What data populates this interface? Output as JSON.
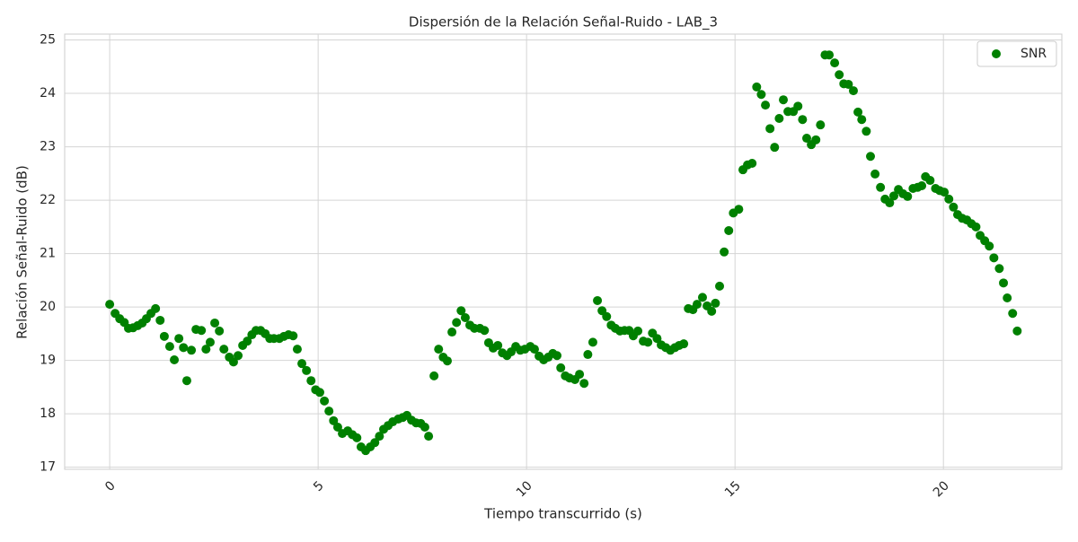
{
  "chart_data": {
    "type": "scatter",
    "title": "Dispersión de la Relación Señal-Ruido - LAB_3",
    "x_label": "Tiempo transcurrido (s)",
    "y_label": "Relación Señal-Ruido (dB)",
    "x": [
      0,
      0.13,
      0.24,
      0.35,
      0.45,
      0.56,
      0.67,
      0.78,
      0.88,
      0.99,
      1.1,
      1.21,
      1.31,
      1.44,
      1.55,
      1.66,
      1.77,
      1.85,
      1.96,
      2.07,
      2.2,
      2.31,
      2.41,
      2.52,
      2.63,
      2.74,
      2.87,
      2.97,
      3.08,
      3.19,
      3.3,
      3.41,
      3.51,
      3.62,
      3.73,
      3.84,
      3.94,
      4.07,
      4.18,
      4.29,
      4.4,
      4.5,
      4.61,
      4.72,
      4.83,
      4.94,
      5.04,
      5.15,
      5.26,
      5.37,
      5.47,
      5.58,
      5.71,
      5.82,
      5.93,
      6.03,
      6.14,
      6.25,
      6.36,
      6.47,
      6.57,
      6.68,
      6.79,
      6.92,
      7.03,
      7.13,
      7.24,
      7.35,
      7.46,
      7.56,
      7.65,
      7.78,
      7.89,
      8.0,
      8.1,
      8.21,
      8.32,
      8.43,
      8.53,
      8.64,
      8.75,
      8.88,
      8.99,
      9.09,
      9.2,
      9.31,
      9.42,
      9.53,
      9.63,
      9.74,
      9.85,
      9.96,
      10.09,
      10.19,
      10.3,
      10.41,
      10.52,
      10.63,
      10.73,
      10.82,
      10.93,
      11.03,
      11.16,
      11.27,
      11.38,
      11.47,
      11.59,
      11.7,
      11.81,
      11.92,
      12.03,
      12.13,
      12.24,
      12.35,
      12.46,
      12.56,
      12.67,
      12.8,
      12.91,
      13.02,
      13.13,
      13.23,
      13.34,
      13.45,
      13.56,
      13.66,
      13.77,
      13.88,
      13.99,
      14.09,
      14.22,
      14.33,
      14.44,
      14.53,
      14.63,
      14.74,
      14.85,
      14.96,
      15.09,
      15.19,
      15.3,
      15.41,
      15.52,
      15.63,
      15.73,
      15.84,
      15.95,
      16.06,
      16.16,
      16.27,
      16.4,
      16.51,
      16.62,
      16.72,
      16.83,
      16.94,
      17.05,
      17.16,
      17.26,
      17.39,
      17.5,
      17.61,
      17.72,
      17.84,
      17.95,
      18.04,
      18.15,
      18.25,
      18.36,
      18.49,
      18.6,
      18.71,
      18.81,
      18.92,
      19.03,
      19.14,
      19.27,
      19.38,
      19.48,
      19.57,
      19.68,
      19.81,
      19.91,
      20.02,
      20.13,
      20.24,
      20.34,
      20.45,
      20.56,
      20.67,
      20.78,
      20.88,
      20.99,
      21.1,
      21.21,
      21.34,
      21.44,
      21.53,
      21.66,
      21.77
    ],
    "series": [
      {
        "name": "SNR",
        "color": "#008000",
        "values": [
          20.05,
          19.88,
          19.78,
          19.71,
          19.6,
          19.61,
          19.65,
          19.7,
          19.78,
          19.88,
          19.97,
          19.75,
          19.45,
          19.26,
          19.01,
          19.41,
          19.24,
          18.62,
          19.19,
          19.58,
          19.56,
          19.21,
          19.34,
          19.7,
          19.55,
          19.21,
          19.06,
          18.97,
          19.09,
          19.28,
          19.36,
          19.48,
          19.56,
          19.56,
          19.5,
          19.41,
          19.41,
          19.41,
          19.45,
          19.48,
          19.46,
          19.21,
          18.94,
          18.81,
          18.62,
          18.45,
          18.4,
          18.24,
          18.05,
          17.87,
          17.75,
          17.63,
          17.68,
          17.61,
          17.55,
          17.38,
          17.31,
          17.38,
          17.46,
          17.58,
          17.71,
          17.78,
          17.85,
          17.9,
          17.93,
          17.97,
          17.88,
          17.83,
          17.82,
          17.75,
          17.58,
          18.71,
          19.21,
          19.06,
          18.99,
          19.53,
          19.71,
          19.93,
          19.8,
          19.66,
          19.6,
          19.6,
          19.56,
          19.33,
          19.23,
          19.28,
          19.14,
          19.09,
          19.16,
          19.26,
          19.19,
          19.21,
          19.26,
          19.21,
          19.08,
          19.01,
          19.06,
          19.13,
          19.09,
          18.86,
          18.71,
          18.67,
          18.64,
          18.74,
          18.57,
          19.11,
          19.34,
          20.12,
          19.93,
          19.82,
          19.66,
          19.6,
          19.55,
          19.56,
          19.56,
          19.46,
          19.55,
          19.36,
          19.34,
          19.51,
          19.41,
          19.29,
          19.24,
          19.19,
          19.24,
          19.28,
          19.31,
          19.97,
          19.95,
          20.05,
          20.18,
          20.02,
          19.92,
          20.07,
          20.39,
          21.03,
          21.43,
          21.76,
          21.83,
          22.57,
          22.66,
          22.69,
          24.12,
          23.98,
          23.78,
          23.34,
          22.99,
          23.53,
          23.88,
          23.66,
          23.66,
          23.76,
          23.51,
          23.16,
          23.04,
          23.13,
          23.41,
          24.72,
          24.72,
          24.57,
          24.35,
          24.18,
          24.17,
          24.05,
          23.65,
          23.51,
          23.29,
          22.82,
          22.49,
          22.24,
          22.02,
          21.95,
          22.08,
          22.2,
          22.12,
          22.07,
          22.22,
          22.24,
          22.27,
          22.44,
          22.37,
          22.22,
          22.18,
          22.15,
          22.02,
          21.87,
          21.73,
          21.66,
          21.63,
          21.56,
          21.5,
          21.34,
          21.24,
          21.14,
          20.92,
          20.72,
          20.45,
          20.17,
          19.88,
          19.55
        ]
      }
    ],
    "xlim": [
      -1.08,
      22.84
    ],
    "ylim": [
      16.96,
      25.11
    ],
    "xticks": [
      0,
      5,
      10,
      15,
      20
    ],
    "yticks": [
      17,
      18,
      19,
      20,
      21,
      22,
      23,
      24,
      25
    ],
    "grid": true,
    "legend": "upper right"
  }
}
